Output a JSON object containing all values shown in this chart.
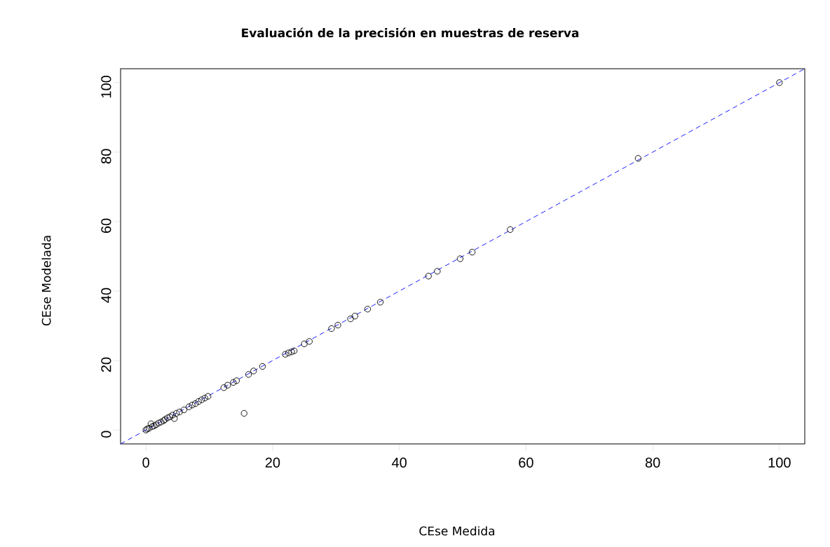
{
  "chart_data": {
    "type": "scatter",
    "title": "**Evaluación de la precisión en muestras de reserva**",
    "xlabel": "CEse Medida",
    "ylabel": "CEse Modelada",
    "xlim": [
      -4,
      104
    ],
    "ylim": [
      -4,
      104
    ],
    "xticks": [
      0,
      20,
      40,
      60,
      80,
      100
    ],
    "yticks": [
      0,
      20,
      40,
      60,
      80,
      100
    ],
    "marker": "circle",
    "series": [
      {
        "color": "#000000",
        "x": [
          0,
          0.2,
          0.5,
          0.8,
          1,
          1.3,
          1.6,
          2,
          2.4,
          2.8,
          3,
          3.4,
          3.8,
          4.2,
          4.5,
          4.8,
          5.3,
          6,
          6.8,
          7.3,
          7.8,
          8.3,
          8.8,
          9.3,
          9.8,
          12.3,
          12.9,
          13.8,
          14.3,
          15.5,
          16.2,
          17,
          18.4,
          22,
          22.5,
          23,
          23.4,
          25,
          25.8,
          29.3,
          30.3,
          32.3,
          33,
          35,
          37,
          44.6,
          46,
          49.6,
          51.5,
          57.5,
          77.7,
          100
        ],
        "values": [
          0,
          0.3,
          0.5,
          1.8,
          1,
          1.2,
          1.5,
          2,
          2.3,
          2.7,
          3,
          3.5,
          3.8,
          4.3,
          3.3,
          4.8,
          5.2,
          5.8,
          6.7,
          7.2,
          7.6,
          8.2,
          8.7,
          9.2,
          9.7,
          12.2,
          12.9,
          13.7,
          14.2,
          4.8,
          16,
          17,
          18.3,
          21.8,
          22.2,
          22.5,
          22.8,
          24.8,
          25.5,
          29.2,
          30.2,
          32,
          32.8,
          34.8,
          36.8,
          44.3,
          45.7,
          49.3,
          51.2,
          57.7,
          78.2,
          100
        ]
      },
      {
        "type": "line",
        "color": "#0000ff",
        "line_style": "dashed",
        "marker": "none",
        "x": [
          -4,
          104
        ],
        "values": [
          -4,
          104
        ]
      }
    ]
  }
}
